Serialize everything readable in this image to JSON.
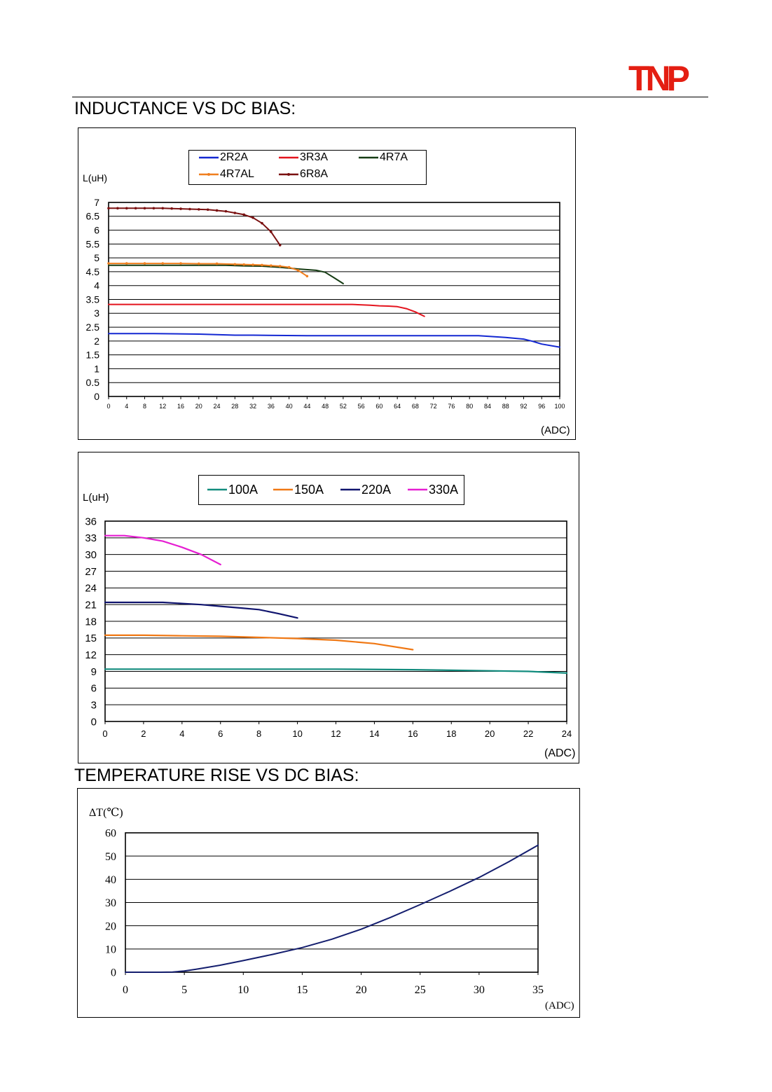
{
  "header": {
    "brand_text": "TNP",
    "brand_color": "#e41e12"
  },
  "sections": {
    "inductance_title": "INDUCTANCE VS DC BIAS:",
    "temperature_title": "TEMPERATURE RISE VS DC BIAS:"
  },
  "chart_data": [
    {
      "type": "line",
      "ylabel": "L(uH)",
      "xunit": "(ADC)",
      "xlim": [
        0,
        100
      ],
      "ylim": [
        0,
        7
      ],
      "xticks": [
        "0",
        "4",
        "8",
        "12",
        "16",
        "20",
        "24",
        "28",
        "32",
        "36",
        "40",
        "44",
        "48",
        "52",
        "56",
        "60",
        "64",
        "68",
        "72",
        "76",
        "80",
        "84",
        "88",
        "92",
        "96",
        "100"
      ],
      "yticks": [
        "0",
        "0.5",
        "1",
        "1.5",
        "2",
        "2.5",
        "3",
        "3.5",
        "4",
        "4.5",
        "5",
        "5.5",
        "6",
        "6.5",
        "7"
      ],
      "grid": true,
      "legend_position": "top",
      "series": [
        {
          "name": "2R2A",
          "color": "#1428d2",
          "marker": "none",
          "x": [
            0,
            10,
            20,
            24,
            28,
            32,
            44,
            50,
            60,
            70,
            82,
            88,
            92,
            94,
            96,
            100
          ],
          "y": [
            2.27,
            2.27,
            2.25,
            2.23,
            2.21,
            2.21,
            2.19,
            2.19,
            2.19,
            2.19,
            2.19,
            2.13,
            2.07,
            1.99,
            1.89,
            1.78
          ]
        },
        {
          "name": "3R3A",
          "color": "#e4141e",
          "marker": "none",
          "x": [
            0,
            20,
            40,
            54,
            58,
            60,
            62,
            64,
            66,
            68,
            70
          ],
          "y": [
            3.32,
            3.32,
            3.32,
            3.32,
            3.29,
            3.27,
            3.26,
            3.24,
            3.17,
            3.05,
            2.89
          ]
        },
        {
          "name": "4R7A",
          "color": "#163c14",
          "marker": "none",
          "x": [
            0,
            26,
            30,
            34,
            38,
            42,
            46,
            48,
            50,
            52
          ],
          "y": [
            4.73,
            4.73,
            4.71,
            4.7,
            4.66,
            4.6,
            4.55,
            4.48,
            4.28,
            4.07
          ]
        },
        {
          "name": "4R7AL",
          "color": "#f07e1e",
          "marker": "dot",
          "x": [
            0,
            4,
            8,
            12,
            16,
            20,
            24,
            28,
            30,
            32,
            34,
            36,
            38,
            40,
            42,
            44
          ],
          "y": [
            4.8,
            4.8,
            4.8,
            4.8,
            4.8,
            4.79,
            4.79,
            4.77,
            4.76,
            4.75,
            4.74,
            4.72,
            4.7,
            4.66,
            4.55,
            4.34
          ]
        },
        {
          "name": "6R8A",
          "color": "#7a1010",
          "marker": "dot",
          "x": [
            0,
            2,
            4,
            6,
            8,
            10,
            12,
            14,
            16,
            18,
            20,
            22,
            24,
            26,
            28,
            30,
            32,
            34,
            36,
            38
          ],
          "y": [
            6.79,
            6.79,
            6.79,
            6.79,
            6.79,
            6.79,
            6.79,
            6.78,
            6.77,
            6.76,
            6.75,
            6.74,
            6.71,
            6.68,
            6.62,
            6.56,
            6.45,
            6.25,
            5.94,
            5.46
          ]
        }
      ]
    },
    {
      "type": "line",
      "ylabel": "L(uH)",
      "xunit": "(ADC)",
      "xlim": [
        0,
        24
      ],
      "ylim": [
        0,
        36
      ],
      "xticks": [
        "0",
        "2",
        "4",
        "6",
        "8",
        "10",
        "12",
        "14",
        "16",
        "18",
        "20",
        "22",
        "24"
      ],
      "yticks": [
        "0",
        "3",
        "6",
        "9",
        "12",
        "15",
        "18",
        "21",
        "24",
        "27",
        "30",
        "33",
        "36"
      ],
      "grid": true,
      "legend_position": "top",
      "series": [
        {
          "name": "100A",
          "color": "#128c7e",
          "marker": "none",
          "x": [
            0,
            4,
            8,
            12,
            16,
            18,
            20,
            22,
            24
          ],
          "y": [
            9.4,
            9.4,
            9.4,
            9.4,
            9.3,
            9.2,
            9.1,
            9.0,
            8.7
          ]
        },
        {
          "name": "150A",
          "color": "#f07814",
          "marker": "none",
          "x": [
            0,
            2,
            4,
            6,
            8,
            10,
            12,
            14,
            16
          ],
          "y": [
            15.5,
            15.5,
            15.4,
            15.3,
            15.1,
            14.9,
            14.6,
            14.0,
            12.9
          ]
        },
        {
          "name": "220A",
          "color": "#10146e",
          "marker": "none",
          "x": [
            0,
            1,
            2,
            3,
            4,
            5,
            6,
            7,
            8,
            9,
            10
          ],
          "y": [
            21.4,
            21.4,
            21.4,
            21.4,
            21.2,
            21.0,
            20.7,
            20.4,
            20.1,
            19.4,
            18.6
          ]
        },
        {
          "name": "330A",
          "color": "#e61ed2",
          "marker": "none",
          "x": [
            0,
            1,
            2,
            3,
            4,
            5,
            6
          ],
          "y": [
            33.4,
            33.4,
            33.0,
            32.4,
            31.3,
            30.0,
            28.2
          ]
        }
      ]
    },
    {
      "type": "line",
      "ylabel": "ΔT(℃)",
      "xunit": "(ADC)",
      "xlim": [
        0,
        35
      ],
      "ylim": [
        0,
        60
      ],
      "xticks": [
        "0",
        "5",
        "10",
        "15",
        "20",
        "25",
        "30",
        "35"
      ],
      "yticks": [
        "0",
        "10",
        "20",
        "30",
        "40",
        "50",
        "60"
      ],
      "grid": true,
      "series": [
        {
          "color": "#141e6e",
          "marker": "none",
          "x": [
            0,
            3,
            4,
            5,
            6,
            8,
            10,
            12.5,
            15,
            17.5,
            20,
            22.5,
            25,
            27.5,
            30,
            32.5,
            35
          ],
          "y": [
            0,
            0,
            0.1,
            0.5,
            1.3,
            3.0,
            5.0,
            7.7,
            10.6,
            14.2,
            18.5,
            23.6,
            29.1,
            34.8,
            40.8,
            47.5,
            54.7
          ]
        }
      ]
    }
  ]
}
